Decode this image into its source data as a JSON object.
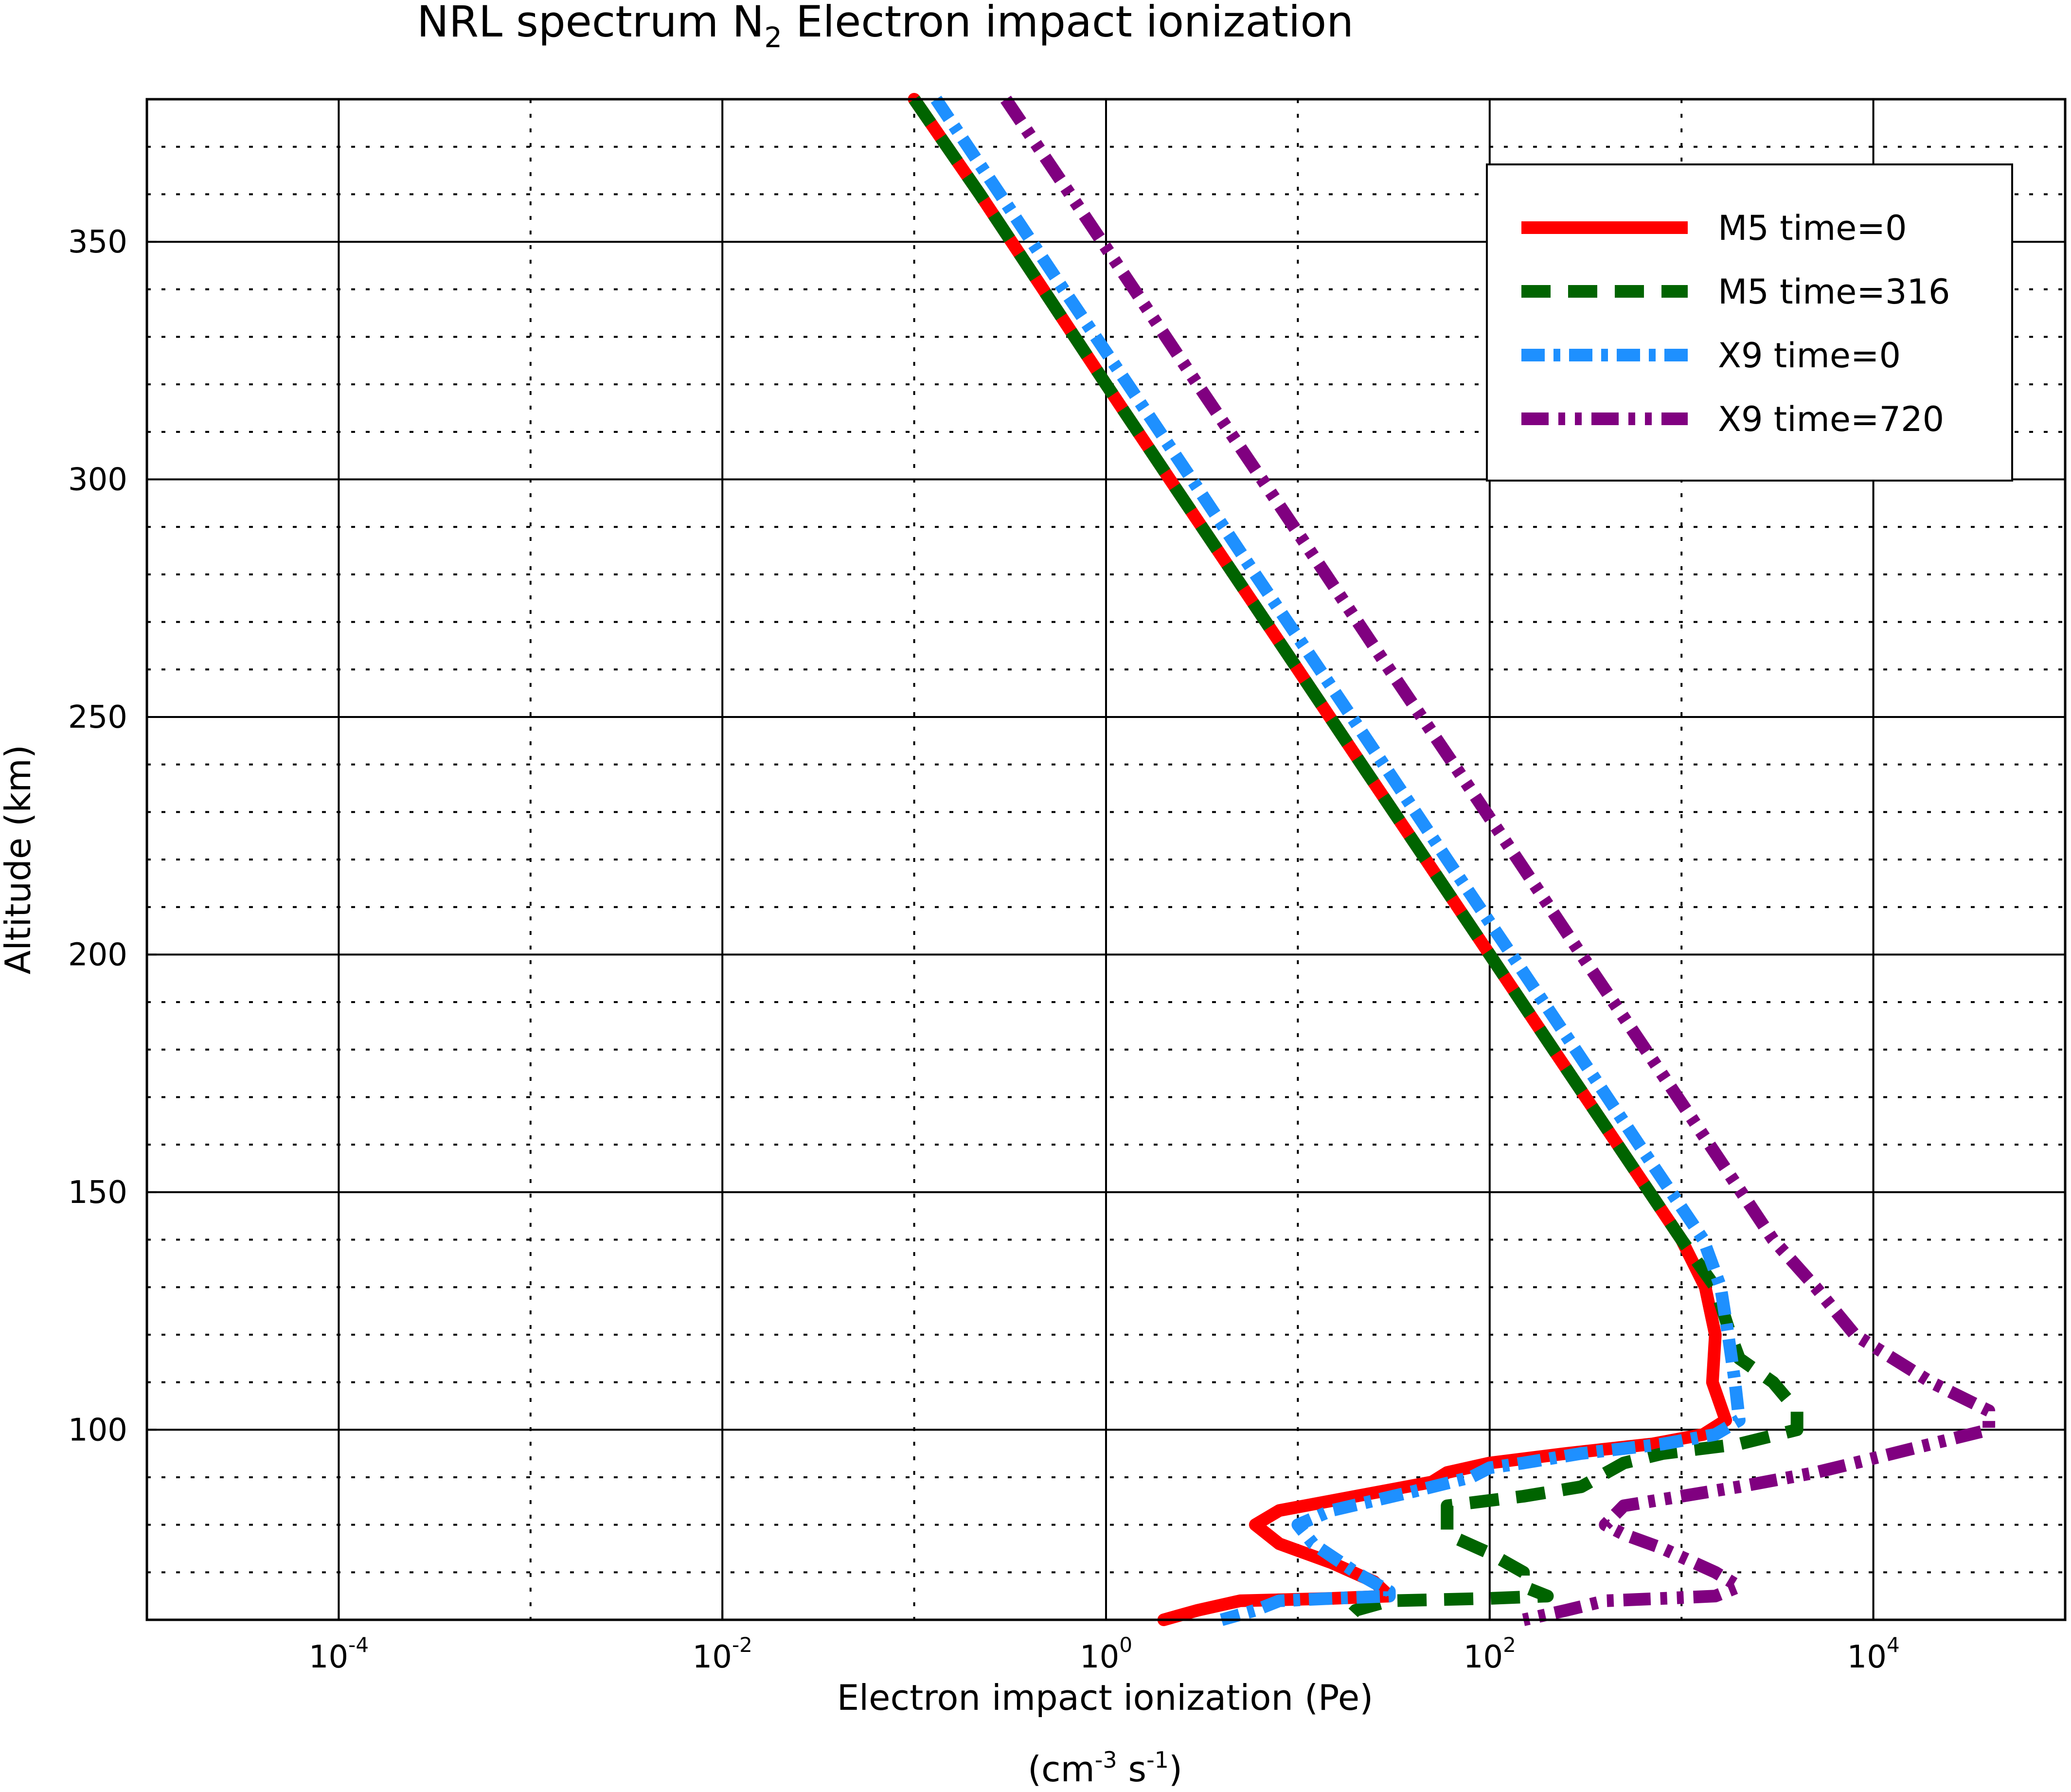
{
  "chart_data": {
    "type": "line",
    "title": {
      "main": "NRL spectrum N",
      "subscript": "2",
      "rest": " Electron impact ionization"
    },
    "xlabel": "Electron impact ionization (Pe)",
    "xunits": {
      "open": "(cm",
      "exp1": "-3",
      "mid": " s",
      "exp2": "-1",
      "close": ")"
    },
    "ylabel": "Altitude (km)",
    "xscale": "log",
    "xlim": [
      1e-05,
      100000
    ],
    "ylim": [
      60,
      380
    ],
    "xticks": [
      {
        "value": 0.0001,
        "base": "10",
        "exp": "-4"
      },
      {
        "value": 0.01,
        "base": "10",
        "exp": "-2"
      },
      {
        "value": 1,
        "base": "10",
        "exp": "0"
      },
      {
        "value": 100,
        "base": "10",
        "exp": "2"
      },
      {
        "value": 10000,
        "base": "10",
        "exp": "4"
      }
    ],
    "yticks": [
      100,
      150,
      200,
      250,
      300,
      350
    ],
    "grid": true,
    "legend_position": "top-right",
    "series": [
      {
        "name": "M5 time=0",
        "color": "#ff0000",
        "style": "solid",
        "points": [
          [
            0.1,
            380
          ],
          [
            0.22,
            360
          ],
          [
            0.47,
            340
          ],
          [
            1.0,
            320
          ],
          [
            2.15,
            300
          ],
          [
            4.64,
            280
          ],
          [
            10.0,
            260
          ],
          [
            21.5,
            240
          ],
          [
            46.4,
            220
          ],
          [
            100,
            200
          ],
          [
            215,
            180
          ],
          [
            464,
            160
          ],
          [
            1000,
            140
          ],
          [
            1330,
            130
          ],
          [
            1500,
            120
          ],
          [
            1450,
            110
          ],
          [
            1700,
            102
          ],
          [
            1300,
            99
          ],
          [
            700,
            97
          ],
          [
            250,
            95
          ],
          [
            100,
            93
          ],
          [
            60,
            91
          ],
          [
            50,
            89
          ],
          [
            20,
            86
          ],
          [
            8,
            83
          ],
          [
            6,
            80
          ],
          [
            8,
            76
          ],
          [
            15,
            72
          ],
          [
            25,
            68
          ],
          [
            30,
            65
          ],
          [
            15,
            64.5
          ],
          [
            5,
            64
          ],
          [
            3,
            62
          ],
          [
            2,
            60
          ]
        ]
      },
      {
        "name": "M5 time=316",
        "color": "#006400",
        "style": "dashed",
        "points": [
          [
            0.1,
            380
          ],
          [
            0.22,
            360
          ],
          [
            0.47,
            340
          ],
          [
            1.0,
            320
          ],
          [
            2.15,
            300
          ],
          [
            4.64,
            280
          ],
          [
            10.0,
            260
          ],
          [
            21.5,
            240
          ],
          [
            46.4,
            220
          ],
          [
            100,
            200
          ],
          [
            215,
            180
          ],
          [
            464,
            160
          ],
          [
            1000,
            140
          ],
          [
            1500,
            130
          ],
          [
            1800,
            120
          ],
          [
            2000,
            115
          ],
          [
            3000,
            110
          ],
          [
            4000,
            104
          ],
          [
            4000,
            100
          ],
          [
            2000,
            97
          ],
          [
            800,
            95
          ],
          [
            500,
            93
          ],
          [
            300,
            88
          ],
          [
            150,
            86
          ],
          [
            60,
            84
          ],
          [
            60,
            80
          ],
          [
            60,
            78
          ],
          [
            100,
            74
          ],
          [
            150,
            70
          ],
          [
            150,
            67
          ],
          [
            200,
            65
          ],
          [
            100,
            64.5
          ],
          [
            30,
            64
          ],
          [
            20,
            62
          ],
          [
            18,
            60
          ]
        ]
      },
      {
        "name": "X9 time=0",
        "color": "#1e90ff",
        "style": "dashdot",
        "points": [
          [
            0.13,
            380
          ],
          [
            0.28,
            360
          ],
          [
            0.6,
            340
          ],
          [
            1.3,
            320
          ],
          [
            2.8,
            300
          ],
          [
            6.0,
            280
          ],
          [
            13.0,
            260
          ],
          [
            28.0,
            240
          ],
          [
            60.0,
            220
          ],
          [
            130,
            200
          ],
          [
            280,
            180
          ],
          [
            600,
            160
          ],
          [
            1300,
            140
          ],
          [
            1600,
            130
          ],
          [
            1750,
            120
          ],
          [
            1900,
            110
          ],
          [
            2000,
            102
          ],
          [
            1500,
            99
          ],
          [
            800,
            97
          ],
          [
            300,
            95
          ],
          [
            150,
            93
          ],
          [
            100,
            92
          ],
          [
            80,
            90
          ],
          [
            40,
            87
          ],
          [
            15,
            83
          ],
          [
            10,
            80
          ],
          [
            12,
            76
          ],
          [
            20,
            70
          ],
          [
            30,
            66
          ],
          [
            30,
            65
          ],
          [
            15,
            64.5
          ],
          [
            8,
            64
          ],
          [
            6,
            62
          ],
          [
            4,
            60
          ]
        ]
      },
      {
        "name": "X9 time=720",
        "color": "#800080",
        "style": "dashdotdot",
        "points": [
          [
            0.3,
            380
          ],
          [
            0.65,
            360
          ],
          [
            1.4,
            340
          ],
          [
            3.0,
            320
          ],
          [
            6.5,
            300
          ],
          [
            14.0,
            280
          ],
          [
            30.0,
            260
          ],
          [
            65.0,
            240
          ],
          [
            140,
            220
          ],
          [
            300,
            200
          ],
          [
            650,
            180
          ],
          [
            1400,
            160
          ],
          [
            3000,
            140
          ],
          [
            5000,
            130
          ],
          [
            8000,
            120
          ],
          [
            20000,
            110
          ],
          [
            40000,
            104
          ],
          [
            40000,
            100
          ],
          [
            20000,
            97
          ],
          [
            8000,
            93
          ],
          [
            5000,
            91
          ],
          [
            2000,
            88
          ],
          [
            1000,
            86
          ],
          [
            500,
            84
          ],
          [
            400,
            80
          ],
          [
            500,
            78
          ],
          [
            800,
            75
          ],
          [
            1500,
            70
          ],
          [
            2000,
            67
          ],
          [
            1500,
            65
          ],
          [
            800,
            64.5
          ],
          [
            400,
            64
          ],
          [
            250,
            62
          ],
          [
            150,
            60
          ]
        ]
      }
    ]
  }
}
